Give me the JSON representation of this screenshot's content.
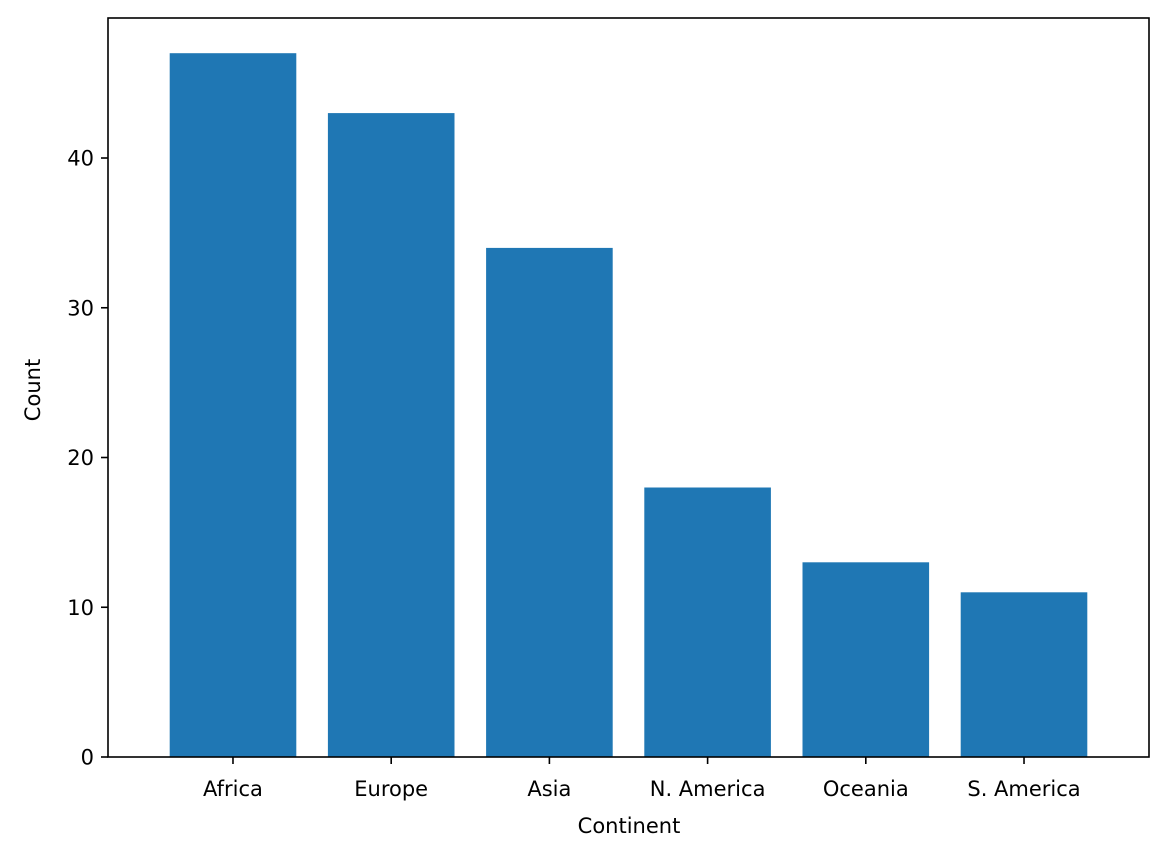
{
  "chart_data": {
    "type": "bar",
    "title": "",
    "xlabel": "Continent",
    "ylabel": "Count",
    "categories": [
      "Africa",
      "Europe",
      "Asia",
      "N. America",
      "Oceania",
      "S. America"
    ],
    "values": [
      47,
      43,
      34,
      18,
      13,
      11
    ],
    "ylim": [
      0,
      49.35
    ],
    "yticks": [
      0,
      10,
      20,
      30,
      40
    ],
    "grid": false,
    "bar_color": "#1f77b4"
  }
}
